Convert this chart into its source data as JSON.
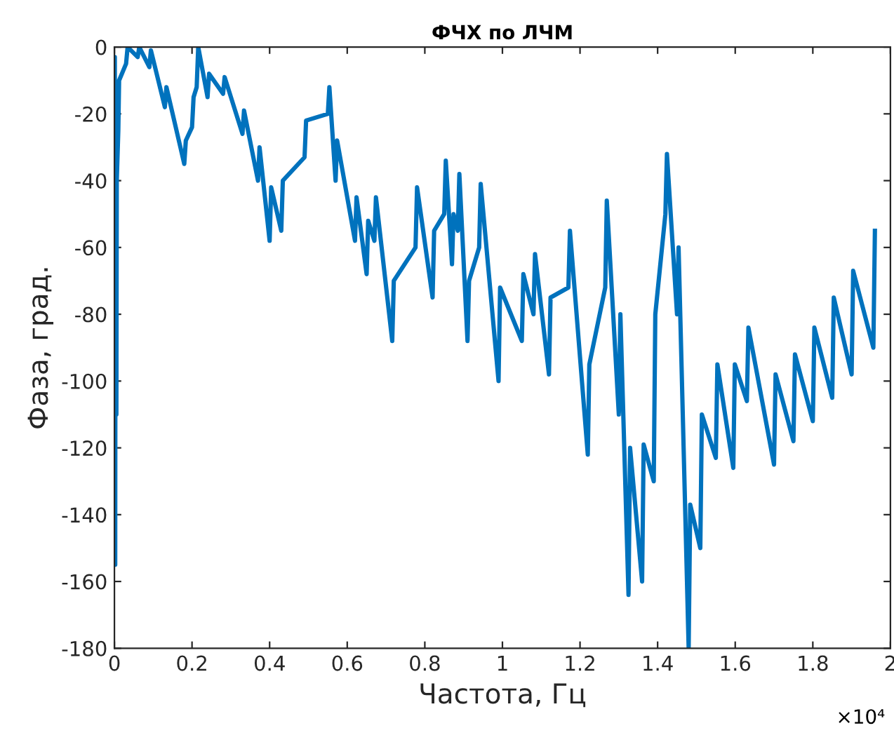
{
  "chart_data": {
    "type": "line",
    "title": "ФЧХ по ЛЧМ",
    "xlabel": "Частота, Гц",
    "ylabel": "Фаза, град.",
    "xlim": [
      0,
      2
    ],
    "xticks": [
      0,
      0.2,
      0.4,
      0.6,
      0.8,
      1,
      1.2,
      1.4,
      1.6,
      1.8,
      2
    ],
    "ylim": [
      -180,
      0
    ],
    "yticks": [
      -180,
      -160,
      -140,
      -120,
      -100,
      -80,
      -60,
      -40,
      -20,
      0
    ],
    "grid": false,
    "line_style": "solid",
    "marker": "none",
    "annotations": [
      "×10⁴"
    ],
    "series": [
      {
        "color": "#0072bd",
        "x": [
          0.0,
          0.001,
          0.002,
          0.003,
          0.005,
          0.006,
          0.01,
          0.012,
          0.03,
          0.034,
          0.06,
          0.064,
          0.09,
          0.094,
          0.13,
          0.134,
          0.18,
          0.184,
          0.2,
          0.204,
          0.212,
          0.216,
          0.24,
          0.244,
          0.28,
          0.284,
          0.33,
          0.334,
          0.37,
          0.374,
          0.4,
          0.404,
          0.43,
          0.434,
          0.49,
          0.494,
          0.55,
          0.554,
          0.57,
          0.574,
          0.62,
          0.624,
          0.65,
          0.654,
          0.67,
          0.674,
          0.716,
          0.72,
          0.776,
          0.78,
          0.82,
          0.824,
          0.85,
          0.854,
          0.87,
          0.874,
          0.885,
          0.889,
          0.91,
          0.914,
          0.94,
          0.944,
          0.99,
          0.994,
          1.05,
          1.054,
          1.08,
          1.084,
          1.12,
          1.124,
          1.17,
          1.174,
          1.22,
          1.224,
          1.265,
          1.269,
          1.3,
          1.304,
          1.325,
          1.329,
          1.36,
          1.364,
          1.39,
          1.394,
          1.42,
          1.424,
          1.45,
          1.454,
          1.48,
          1.484,
          1.51,
          1.514,
          1.55,
          1.554,
          1.595,
          1.599,
          1.63,
          1.634,
          1.7,
          1.704,
          1.75,
          1.754,
          1.8,
          1.804,
          1.85,
          1.854,
          1.9,
          1.904,
          1.956,
          1.96
        ],
        "values": [
          -8,
          -3,
          -155,
          -20,
          -110,
          -40,
          -25,
          -10,
          -5,
          0,
          -3,
          0,
          -6,
          -1,
          -18,
          -12,
          -35,
          -28,
          -24,
          -15,
          -12,
          0,
          -15,
          -8,
          -14,
          -9,
          -26,
          -19,
          -40,
          -30,
          -58,
          -42,
          -55,
          -40,
          -33,
          -22,
          -20,
          -12,
          -40,
          -28,
          -58,
          -45,
          -68,
          -52,
          -58,
          -45,
          -88,
          -70,
          -60,
          -42,
          -75,
          -55,
          -50,
          -34,
          -65,
          -50,
          -55,
          -38,
          -88,
          -70,
          -60,
          -41,
          -100,
          -72,
          -88,
          -68,
          -80,
          -62,
          -98,
          -75,
          -72,
          -55,
          -122,
          -95,
          -72,
          -46,
          -110,
          -80,
          -164,
          -120,
          -160,
          -119,
          -130,
          -80,
          -50,
          -32,
          -80,
          -60,
          -180,
          -137,
          -150,
          -110,
          -123,
          -95,
          -126,
          -95,
          -106,
          -84,
          -125,
          -98,
          -118,
          -92,
          -112,
          -84,
          -105,
          -75,
          -98,
          -67,
          -90,
          -55
        ]
      }
    ]
  }
}
